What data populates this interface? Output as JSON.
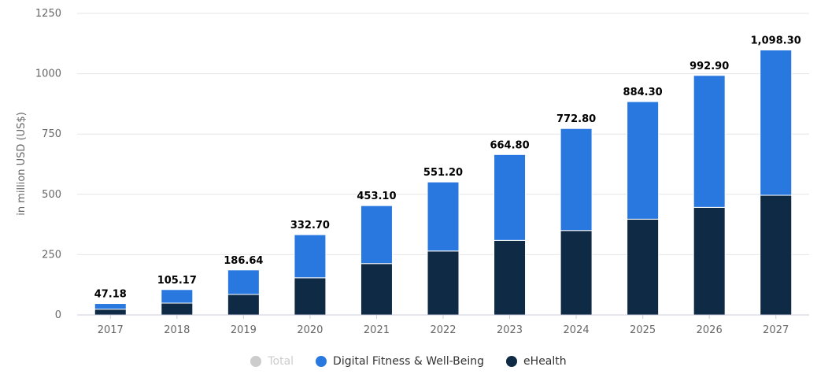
{
  "chart_data": {
    "type": "bar",
    "stacked": true,
    "categories": [
      "2017",
      "2018",
      "2019",
      "2020",
      "2021",
      "2022",
      "2023",
      "2024",
      "2025",
      "2026",
      "2027"
    ],
    "series": [
      {
        "name": "eHealth",
        "color": "#0f2a44",
        "values": [
          24,
          49,
          85,
          154,
          213,
          265,
          309,
          350,
          397,
          446,
          496
        ]
      },
      {
        "name": "Digital Fitness & Well-Being",
        "color": "#2878e0",
        "values": [
          23.18,
          56.17,
          101.64,
          178.7,
          240.1,
          286.2,
          355.8,
          422.8,
          487.3,
          546.9,
          602.3
        ]
      }
    ],
    "totals": {
      "name": "Total",
      "color": "#cccccc",
      "hidden": true,
      "labels": [
        "47.18",
        "105.17",
        "186.64",
        "332.70",
        "453.10",
        "551.20",
        "664.80",
        "772.80",
        "884.30",
        "992.90",
        "1,098.30"
      ],
      "values": [
        47.18,
        105.17,
        186.64,
        332.7,
        453.1,
        551.2,
        664.8,
        772.8,
        884.3,
        992.9,
        1098.3
      ]
    },
    "ylabel": "in million USD (US$)",
    "ylim": [
      0,
      1250
    ],
    "yticks": [
      0,
      250,
      500,
      750,
      1000,
      1250
    ],
    "grid": true,
    "legend_position": "bottom"
  },
  "legend": [
    {
      "label": "Total",
      "color": "#cccccc",
      "muted": true
    },
    {
      "label": "Digital Fitness & Well-Being",
      "color": "#2878e0",
      "muted": false
    },
    {
      "label": "eHealth",
      "color": "#0f2a44",
      "muted": false
    }
  ]
}
